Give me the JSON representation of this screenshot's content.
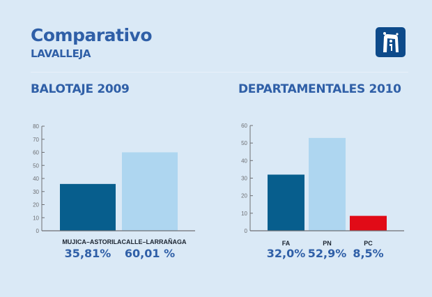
{
  "header": {
    "title": "Comparativo",
    "subtitle": "LAVALLEJA",
    "logo_icon": "monument-logo-icon"
  },
  "colors": {
    "background": "#dae9f6",
    "title": "#2f5fa7",
    "dark_blue": "#075e8d",
    "light_blue": "#aed6f0",
    "red": "#e10b17",
    "axis": "#6d6f73"
  },
  "chart_data": [
    {
      "type": "bar",
      "title": "BALOTAJE 2009",
      "categories": [
        "MUJICA–ASTORI",
        "LACALLE–LARRAÑAGA"
      ],
      "values": [
        35.81,
        60.01
      ],
      "value_labels": [
        "35,81%",
        "60,01 %"
      ],
      "colors": [
        "#075e8d",
        "#aed6f0"
      ],
      "ylim": [
        0,
        80
      ],
      "yticks": [
        0,
        10,
        20,
        30,
        40,
        50,
        60,
        70,
        80
      ],
      "xlabel": "",
      "ylabel": "",
      "grid": false,
      "legend": "none"
    },
    {
      "type": "bar",
      "title": "DEPARTAMENTALES 2010",
      "categories": [
        "FA",
        "PN",
        "PC"
      ],
      "values": [
        32.0,
        52.9,
        8.5
      ],
      "value_labels": [
        "32,0%",
        "52,9%",
        "8,5%"
      ],
      "colors": [
        "#075e8d",
        "#aed6f0",
        "#e10b17"
      ],
      "ylim": [
        0,
        60
      ],
      "yticks": [
        0,
        10,
        20,
        30,
        40,
        50,
        60
      ],
      "xlabel": "",
      "ylabel": "",
      "grid": false,
      "legend": "none"
    }
  ]
}
